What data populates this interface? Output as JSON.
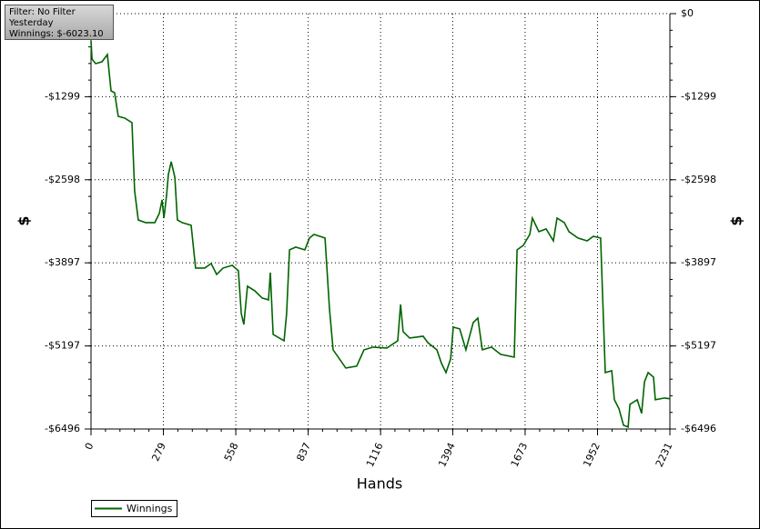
{
  "chart_data": {
    "type": "line",
    "annotations": [
      "Filter: No Filter",
      "Yesterday",
      "Winnings: $-6023.10"
    ],
    "xlabel": "Hands",
    "ylabel": "$",
    "y2label": "$",
    "xlim": [
      0,
      2231
    ],
    "xticks": [
      0,
      279,
      558,
      837,
      1116,
      1394,
      1673,
      1952,
      2231
    ],
    "ylim": [
      -6496,
      0
    ],
    "yticks": [
      {
        "value": 0,
        "label": "$0"
      },
      {
        "value": -1299,
        "label": "-$1299"
      },
      {
        "value": -2598,
        "label": "-$2598"
      },
      {
        "value": -3897,
        "label": "-$3897"
      },
      {
        "value": -5197,
        "label": "-$5197"
      },
      {
        "value": -6496,
        "label": "-$6496"
      }
    ],
    "y2lim": [
      -6496,
      0
    ],
    "y2ticks": [
      {
        "value": 0,
        "label": "$0"
      },
      {
        "value": -1299,
        "label": "-$1299"
      },
      {
        "value": -2598,
        "label": "-$2598"
      },
      {
        "value": -3897,
        "label": "-$3897"
      },
      {
        "value": -5197,
        "label": "-$5197"
      },
      {
        "value": -6496,
        "label": "-$6496"
      }
    ],
    "grid": true,
    "legend": "bottom-left",
    "x": [
      0,
      4,
      18,
      42,
      63,
      70,
      77,
      91,
      105,
      130,
      158,
      168,
      182,
      210,
      246,
      263,
      274,
      281,
      291,
      298,
      309,
      323,
      333,
      351,
      386,
      403,
      438,
      463,
      484,
      509,
      544,
      568,
      579,
      589,
      603,
      631,
      660,
      684,
      691,
      702,
      744,
      754,
      765,
      789,
      824,
      842,
      859,
      902,
      919,
      933,
      965,
      982,
      1024,
      1052,
      1087,
      1140,
      1182,
      1193,
      1203,
      1228,
      1280,
      1298,
      1333,
      1351,
      1368,
      1386,
      1396,
      1421,
      1445,
      1473,
      1491,
      1508,
      1543,
      1579,
      1631,
      1642,
      1666,
      1691,
      1701,
      1726,
      1754,
      1782,
      1796,
      1824,
      1842,
      1877,
      1912,
      1936,
      1964,
      1982,
      2007,
      2017,
      2035,
      2052,
      2070,
      2077,
      2105,
      2122,
      2133,
      2147,
      2168,
      2175,
      2210,
      2231
    ],
    "series": [
      {
        "name": "Winnings",
        "color": "#006400",
        "values": [
          -426,
          -711,
          -782,
          -753,
          -639,
          -924,
          -1208,
          -1236,
          -1606,
          -1634,
          -1705,
          -2771,
          -3226,
          -3268,
          -3268,
          -3126,
          -2913,
          -3197,
          -2842,
          -2515,
          -2316,
          -2558,
          -3226,
          -3268,
          -3311,
          -3979,
          -3979,
          -3908,
          -4078,
          -3979,
          -3936,
          -4021,
          -4689,
          -4860,
          -4263,
          -4334,
          -4448,
          -4476,
          -4050,
          -5016,
          -5116,
          -4689,
          -3695,
          -3652,
          -3695,
          -3510,
          -3453,
          -3510,
          -4618,
          -5258,
          -5442,
          -5542,
          -5513,
          -5258,
          -5215,
          -5229,
          -5116,
          -4547,
          -4974,
          -5073,
          -5045,
          -5144,
          -5258,
          -5471,
          -5613,
          -5400,
          -4902,
          -4931,
          -5258,
          -4831,
          -4760,
          -5258,
          -5215,
          -5329,
          -5371,
          -3695,
          -3624,
          -3453,
          -3197,
          -3410,
          -3368,
          -3553,
          -3197,
          -3268,
          -3410,
          -3510,
          -3553,
          -3482,
          -3510,
          -5613,
          -5585,
          -6039,
          -6181,
          -6437,
          -6466,
          -6110,
          -6039,
          -6252,
          -5755,
          -5613,
          -5684,
          -6039,
          -6011,
          -6023
        ]
      }
    ]
  }
}
